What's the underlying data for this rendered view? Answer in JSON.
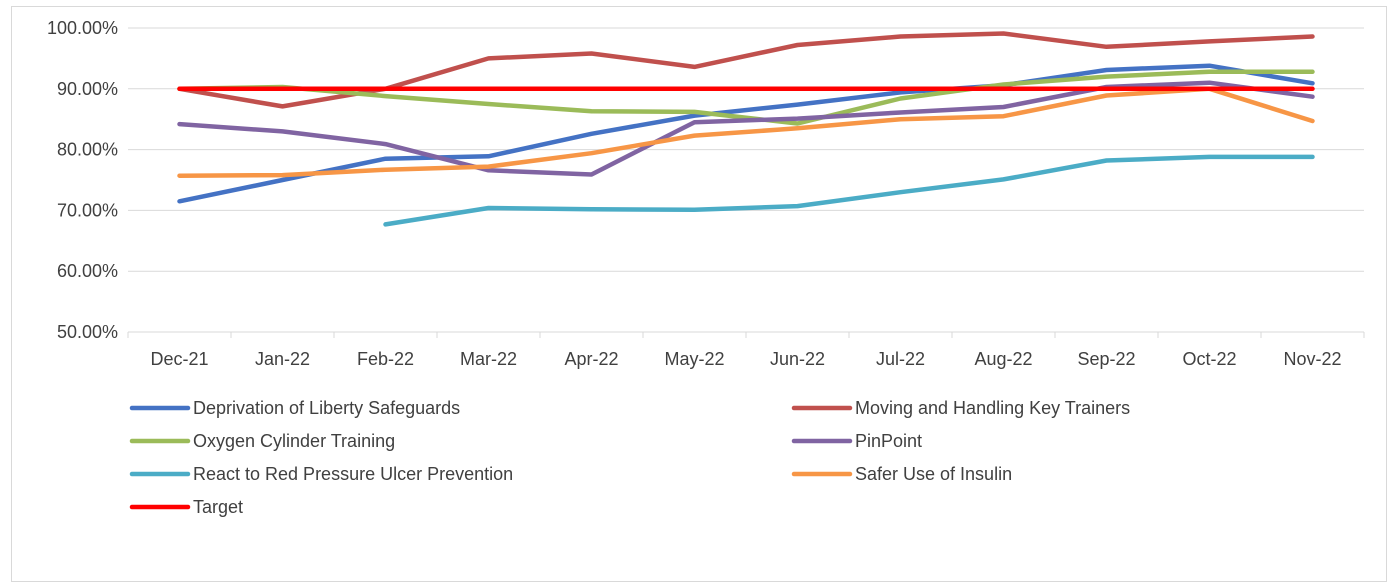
{
  "chart_data": {
    "type": "line",
    "title": "",
    "xlabel": "",
    "ylabel": "",
    "ylim": [
      0.5,
      1.0
    ],
    "y_ticks": [
      "50.00%",
      "60.00%",
      "70.00%",
      "80.00%",
      "90.00%",
      "100.00%"
    ],
    "y_tick_values": [
      0.5,
      0.6,
      0.7,
      0.8,
      0.9,
      1.0
    ],
    "grid": true,
    "legend_position": "bottom",
    "categories": [
      "Dec-21",
      "Jan-22",
      "Feb-22",
      "Mar-22",
      "Apr-22",
      "May-22",
      "Jun-22",
      "Jul-22",
      "Aug-22",
      "Sep-22",
      "Oct-22",
      "Nov-22"
    ],
    "series": [
      {
        "name": "Deprivation of Liberty Safeguards",
        "color": "#4472c4",
        "values": [
          0.715,
          0.75,
          0.785,
          0.789,
          0.826,
          0.856,
          0.874,
          0.894,
          0.906,
          0.931,
          0.938,
          0.909
        ]
      },
      {
        "name": "Moving and Handling Key Trainers",
        "color": "#c0504d",
        "values": [
          0.9,
          0.871,
          0.9,
          0.95,
          0.958,
          0.936,
          0.972,
          0.986,
          0.991,
          0.969,
          0.978,
          0.986
        ]
      },
      {
        "name": "Oxygen Cylinder Training",
        "color": "#9bbb59",
        "values": [
          0.9,
          0.903,
          0.888,
          0.875,
          0.863,
          0.862,
          0.843,
          0.884,
          0.907,
          0.92,
          0.928,
          0.928
        ]
      },
      {
        "name": "PinPoint",
        "color": "#8064a2",
        "values": [
          0.842,
          0.83,
          0.809,
          0.766,
          0.759,
          0.845,
          0.851,
          0.861,
          0.87,
          0.903,
          0.91,
          0.887
        ]
      },
      {
        "name": "React to Red Pressure Ulcer Prevention",
        "color": "#4bacc6",
        "values": [
          null,
          null,
          0.677,
          0.704,
          0.702,
          0.701,
          0.707,
          0.73,
          0.751,
          0.782,
          0.788,
          0.788
        ]
      },
      {
        "name": "Safer Use of Insulin",
        "color": "#f79646",
        "values": [
          0.757,
          0.758,
          0.767,
          0.772,
          0.794,
          0.823,
          0.835,
          0.85,
          0.855,
          0.889,
          0.9,
          0.847
        ]
      },
      {
        "name": "Target",
        "color": "#ff0000",
        "values": [
          0.9,
          0.9,
          0.9,
          0.9,
          0.9,
          0.9,
          0.9,
          0.9,
          0.9,
          0.9,
          0.9,
          0.9
        ]
      }
    ]
  }
}
